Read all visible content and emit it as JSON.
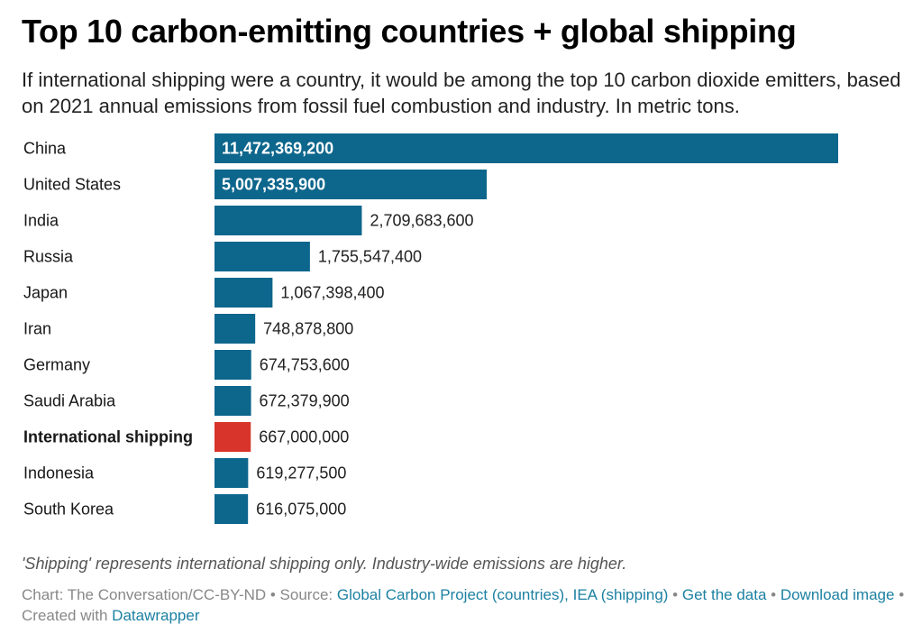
{
  "header": {
    "title": "Top 10 carbon-emitting countries + global shipping",
    "subtitle": "If international shipping were a country, it would be among the top 10 carbon dioxide emitters, based on 2021 annual emissions from fossil fuel combustion and industry. In metric tons."
  },
  "chart_data": {
    "type": "bar",
    "orientation": "horizontal",
    "title": "Top 10 carbon-emitting countries + global shipping",
    "subtitle": "If international shipping were a country, it would be among the top 10 carbon dioxide emitters, based on 2021 annual emissions from fossil fuel combustion and industry. In metric tons.",
    "categories": [
      "China",
      "United States",
      "India",
      "Russia",
      "Japan",
      "Iran",
      "Germany",
      "Saudi Arabia",
      "International shipping",
      "Indonesia",
      "South Korea"
    ],
    "values": [
      11472369200,
      5007335900,
      2709683600,
      1755547400,
      1067398400,
      748878800,
      674753600,
      672379900,
      667000000,
      619277500,
      616075000
    ],
    "value_labels": [
      "11,472,369,200",
      "5,007,335,900",
      "2,709,683,600",
      "1,755,547,400",
      "1,067,398,400",
      "748,878,800",
      "674,753,600",
      "672,379,900",
      "667,000,000",
      "619,277,500",
      "616,075,000"
    ],
    "highlight_category": "International shipping",
    "xlim": [
      0,
      11472369200
    ],
    "grid": false,
    "colors": {
      "bar": "#0d668c",
      "highlight": "#d8342b",
      "label_inside": "#ffffff",
      "label_outside": "#222222"
    }
  },
  "footer": {
    "note": "'Shipping' represents international shipping only. Industry-wide emissions are higher.",
    "credit_prefix": "Chart: The Conversation/CC-BY-ND • Source: ",
    "source_link": "Global Carbon Project (countries), IEA (shipping)",
    "sep1": " • ",
    "get_data": "Get the data",
    "sep2": " • ",
    "download": "Download image",
    "created_prefix": " • Created with ",
    "datawrapper": "Datawrapper",
    "link_color": "#1d81a2"
  }
}
